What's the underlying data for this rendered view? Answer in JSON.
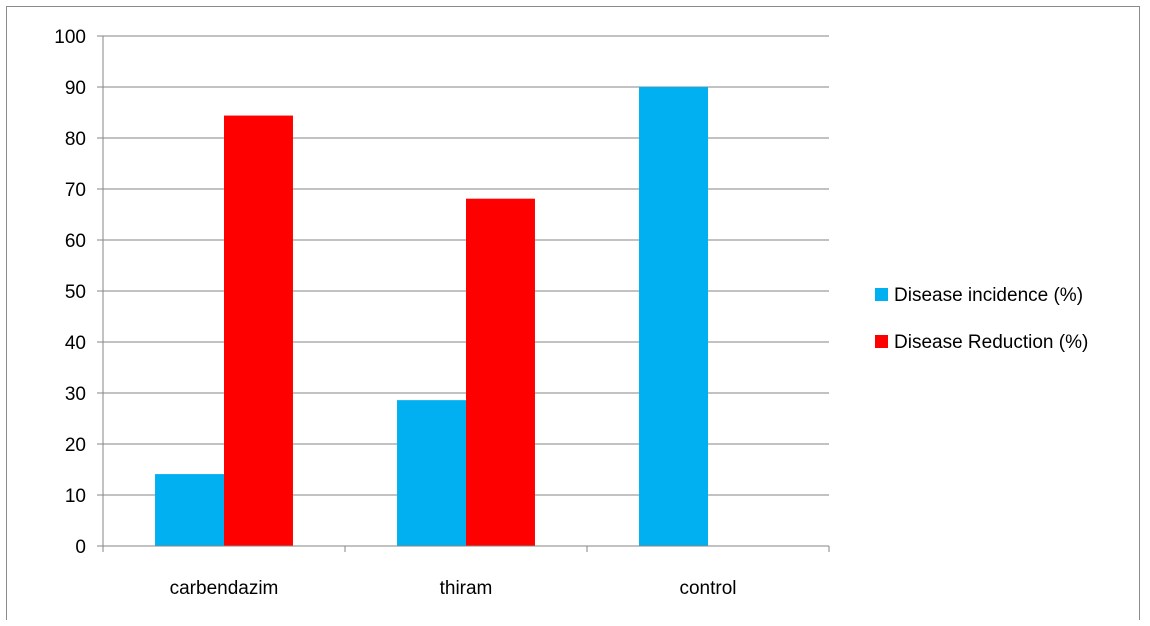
{
  "chart_data": {
    "type": "bar",
    "title": "",
    "xlabel": "",
    "ylabel": "",
    "categories": [
      "carbendazim",
      "thiram",
      "control"
    ],
    "series": [
      {
        "name": "Disease incidence (%)",
        "color": "#00b0f0",
        "values": [
          14.1,
          28.6,
          90
        ]
      },
      {
        "name": "Disease Reduction (%)",
        "color": "#ff0000",
        "values": [
          84.4,
          68.1,
          null
        ]
      }
    ],
    "ylim": [
      0,
      100
    ],
    "yticks": [
      0,
      10,
      20,
      30,
      40,
      50,
      60,
      70,
      80,
      90,
      100
    ],
    "grid": true,
    "gridline_color": "#868686",
    "legend_position": "right"
  }
}
